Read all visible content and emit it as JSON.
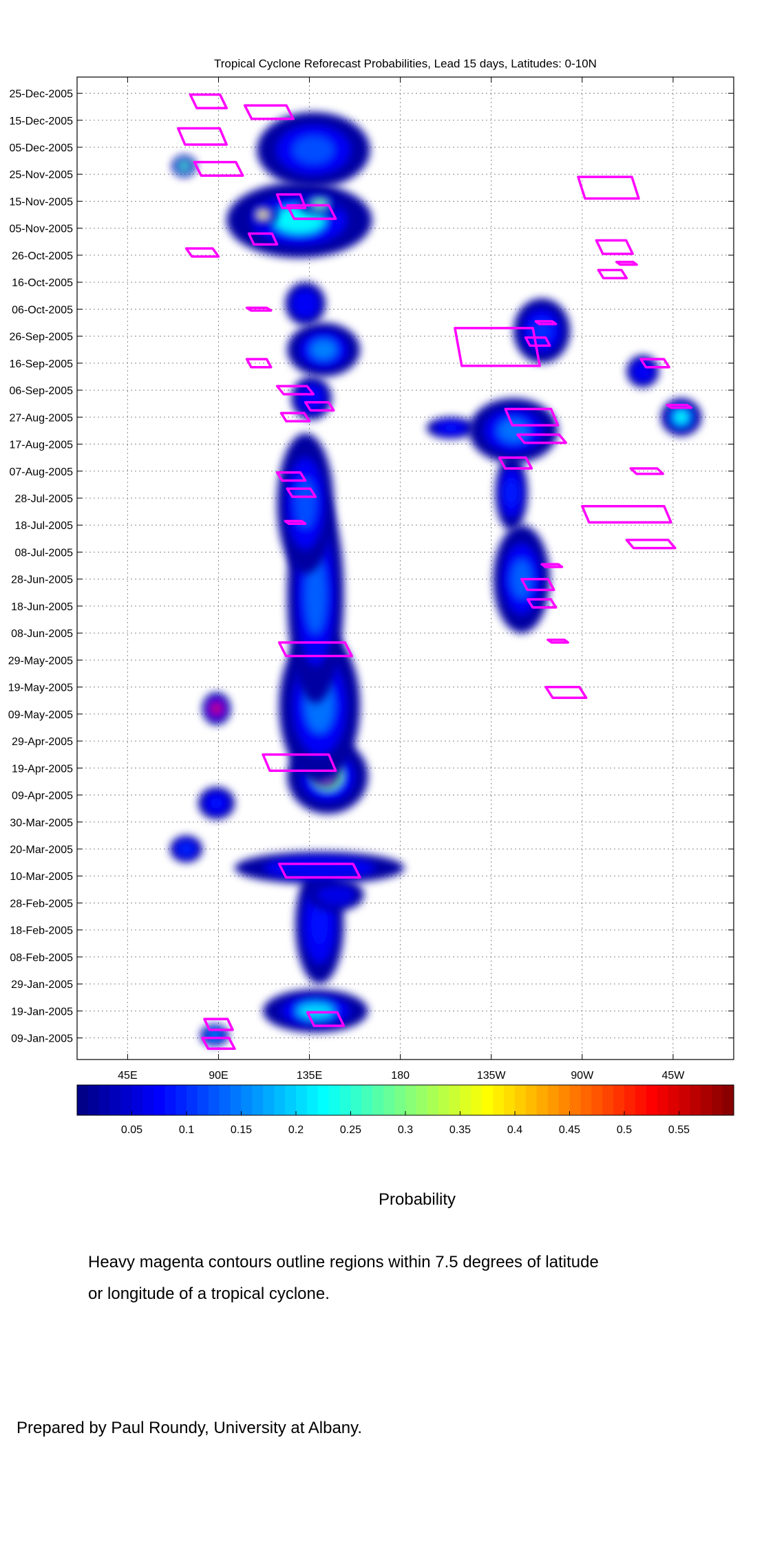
{
  "chart_data": {
    "type": "heatmap",
    "title": "Tropical Cyclone Reforecast Probabilities, Lead 15 days, Latitudes: 0-10N",
    "xlabel": "",
    "ylabel": "",
    "x_ticks": [
      {
        "lon": 45,
        "label": "45E"
      },
      {
        "lon": 90,
        "label": "90E"
      },
      {
        "lon": 135,
        "label": "135E"
      },
      {
        "lon": 180,
        "label": "180"
      },
      {
        "lon": 225,
        "label": "135W"
      },
      {
        "lon": 270,
        "label": "90W"
      },
      {
        "lon": 315,
        "label": "45W"
      }
    ],
    "xlim_lon": [
      20,
      345
    ],
    "y_ticks": [
      "25-Dec-2005",
      "15-Dec-2005",
      "05-Dec-2005",
      "25-Nov-2005",
      "15-Nov-2005",
      "05-Nov-2005",
      "26-Oct-2005",
      "16-Oct-2005",
      "06-Oct-2005",
      "26-Sep-2005",
      "16-Sep-2005",
      "06-Sep-2005",
      "27-Aug-2005",
      "17-Aug-2005",
      "07-Aug-2005",
      "28-Jul-2005",
      "18-Jul-2005",
      "08-Jul-2005",
      "28-Jun-2005",
      "18-Jun-2005",
      "08-Jun-2005",
      "29-May-2005",
      "19-May-2005",
      "09-May-2005",
      "29-Apr-2005",
      "19-Apr-2005",
      "09-Apr-2005",
      "30-Mar-2005",
      "20-Mar-2005",
      "10-Mar-2005",
      "28-Feb-2005",
      "18-Feb-2005",
      "08-Feb-2005",
      "29-Jan-2005",
      "19-Jan-2005",
      "09-Jan-2005"
    ],
    "ylim_dates": [
      "2005-01-01",
      "2005-12-31"
    ],
    "grid": true,
    "colorbar": {
      "label": "Probability",
      "min": 0,
      "max": 0.6,
      "ticks": [
        "0.05",
        "0.1",
        "0.15",
        "0.2",
        "0.25",
        "0.3",
        "0.35",
        "0.4",
        "0.45",
        "0.5",
        "0.55"
      ],
      "colormap": "jet"
    },
    "regions": [
      {
        "lon": 138,
        "date": "2005-01-19",
        "rlon": 26,
        "rdays": 8,
        "peak": 0.2
      },
      {
        "lon": 88,
        "date": "2005-01-10",
        "rlon": 7,
        "rdays": 4,
        "peak": 0.16
      },
      {
        "lon": 140,
        "date": "2005-02-20",
        "rlon": 12,
        "rdays": 22,
        "peak": 0.08
      },
      {
        "lon": 148,
        "date": "2005-03-03",
        "rlon": 14,
        "rdays": 6,
        "peak": 0.06
      },
      {
        "lon": 140,
        "date": "2005-03-13",
        "rlon": 42,
        "rdays": 6,
        "peak": 0.07
      },
      {
        "lon": 74,
        "date": "2005-03-20",
        "rlon": 8,
        "rdays": 5,
        "peak": 0.1
      },
      {
        "lon": 89,
        "date": "2005-04-06",
        "rlon": 9,
        "rdays": 6,
        "peak": 0.08
      },
      {
        "lon": 144,
        "date": "2005-04-16",
        "rlon": 20,
        "rdays": 14,
        "peak": 0.3
      },
      {
        "lon": 143,
        "date": "2005-04-16",
        "rlon": 6,
        "rdays": 4,
        "peak": 0.44
      },
      {
        "lon": 140,
        "date": "2005-05-12",
        "rlon": 20,
        "rdays": 28,
        "peak": 0.14
      },
      {
        "lon": 89,
        "date": "2005-05-11",
        "rlon": 7,
        "rdays": 6,
        "peak": 0.55
      },
      {
        "lon": 138,
        "date": "2005-06-22",
        "rlon": 14,
        "rdays": 40,
        "peak": 0.13
      },
      {
        "lon": 133,
        "date": "2005-07-26",
        "rlon": 14,
        "rdays": 26,
        "peak": 0.12
      },
      {
        "lon": 136,
        "date": "2005-09-03",
        "rlon": 10,
        "rdays": 8,
        "peak": 0.07
      },
      {
        "lon": 142,
        "date": "2005-09-21",
        "rlon": 18,
        "rdays": 10,
        "peak": 0.15
      },
      {
        "lon": 133,
        "date": "2005-10-08",
        "rlon": 10,
        "rdays": 8,
        "peak": 0.07
      },
      {
        "lon": 130,
        "date": "2005-11-08",
        "rlon": 36,
        "rdays": 14,
        "peak": 0.22
      },
      {
        "lon": 112,
        "date": "2005-11-10",
        "rlon": 7,
        "rdays": 4,
        "peak": 0.38
      },
      {
        "lon": 140,
        "date": "2005-11-14",
        "rlon": 10,
        "rdays": 4,
        "peak": 0.3
      },
      {
        "lon": 137,
        "date": "2005-12-04",
        "rlon": 28,
        "rdays": 14,
        "peak": 0.12
      },
      {
        "lon": 73,
        "date": "2005-11-28",
        "rlon": 6,
        "rdays": 4,
        "peak": 0.28
      },
      {
        "lon": 240,
        "date": "2005-06-28",
        "rlon": 14,
        "rdays": 20,
        "peak": 0.13
      },
      {
        "lon": 235,
        "date": "2005-07-30",
        "rlon": 8,
        "rdays": 14,
        "peak": 0.09
      },
      {
        "lon": 236,
        "date": "2005-08-22",
        "rlon": 22,
        "rdays": 12,
        "peak": 0.14
      },
      {
        "lon": 205,
        "date": "2005-08-23",
        "rlon": 12,
        "rdays": 4,
        "peak": 0.08
      },
      {
        "lon": 250,
        "date": "2005-09-28",
        "rlon": 14,
        "rdays": 12,
        "peak": 0.1
      },
      {
        "lon": 319,
        "date": "2005-08-27",
        "rlon": 10,
        "rdays": 7,
        "peak": 0.22
      },
      {
        "lon": 300,
        "date": "2005-09-13",
        "rlon": 8,
        "rdays": 6,
        "peak": 0.07
      }
    ],
    "tc_contours": [
      {
        "lon": 85,
        "date": "2005-12-22",
        "w": 18,
        "h": 5
      },
      {
        "lon": 115,
        "date": "2005-12-18",
        "w": 24,
        "h": 5
      },
      {
        "lon": 82,
        "date": "2005-12-09",
        "w": 24,
        "h": 6
      },
      {
        "lon": 90,
        "date": "2005-11-27",
        "w": 24,
        "h": 5
      },
      {
        "lon": 126,
        "date": "2005-11-15",
        "w": 14,
        "h": 5
      },
      {
        "lon": 136,
        "date": "2005-11-11",
        "w": 24,
        "h": 5
      },
      {
        "lon": 112,
        "date": "2005-11-01",
        "w": 14,
        "h": 4
      },
      {
        "lon": 82,
        "date": "2005-10-27",
        "w": 16,
        "h": 3
      },
      {
        "lon": 110,
        "date": "2005-10-06",
        "w": 12,
        "h": 1
      },
      {
        "lon": 110,
        "date": "2005-09-16",
        "w": 12,
        "h": 3
      },
      {
        "lon": 128,
        "date": "2005-09-06",
        "w": 18,
        "h": 3
      },
      {
        "lon": 140,
        "date": "2005-08-31",
        "w": 14,
        "h": 3
      },
      {
        "lon": 128,
        "date": "2005-08-27",
        "w": 14,
        "h": 3
      },
      {
        "lon": 126,
        "date": "2005-08-05",
        "w": 14,
        "h": 3
      },
      {
        "lon": 131,
        "date": "2005-07-30",
        "w": 14,
        "h": 3
      },
      {
        "lon": 128,
        "date": "2005-07-19",
        "w": 10,
        "h": 1
      },
      {
        "lon": 138,
        "date": "2005-06-02",
        "w": 36,
        "h": 5
      },
      {
        "lon": 130,
        "date": "2005-04-21",
        "w": 36,
        "h": 6
      },
      {
        "lon": 140,
        "date": "2005-03-12",
        "w": 40,
        "h": 5
      },
      {
        "lon": 143,
        "date": "2005-01-16",
        "w": 18,
        "h": 5
      },
      {
        "lon": 90,
        "date": "2005-01-14",
        "w": 14,
        "h": 4
      },
      {
        "lon": 90,
        "date": "2005-01-07",
        "w": 16,
        "h": 4
      },
      {
        "lon": 228,
        "date": "2005-09-22",
        "w": 42,
        "h": 14
      },
      {
        "lon": 252,
        "date": "2005-10-01",
        "w": 10,
        "h": 1
      },
      {
        "lon": 248,
        "date": "2005-09-24",
        "w": 12,
        "h": 3
      },
      {
        "lon": 245,
        "date": "2005-08-27",
        "w": 26,
        "h": 6
      },
      {
        "lon": 250,
        "date": "2005-08-19",
        "w": 24,
        "h": 3
      },
      {
        "lon": 237,
        "date": "2005-08-10",
        "w": 16,
        "h": 4
      },
      {
        "lon": 255,
        "date": "2005-07-03",
        "w": 10,
        "h": 1
      },
      {
        "lon": 248,
        "date": "2005-06-26",
        "w": 16,
        "h": 4
      },
      {
        "lon": 250,
        "date": "2005-06-19",
        "w": 14,
        "h": 3
      },
      {
        "lon": 258,
        "date": "2005-06-05",
        "w": 10,
        "h": 1
      },
      {
        "lon": 262,
        "date": "2005-05-17",
        "w": 20,
        "h": 4
      },
      {
        "lon": 292,
        "date": "2005-07-22",
        "w": 44,
        "h": 6
      },
      {
        "lon": 304,
        "date": "2005-07-11",
        "w": 24,
        "h": 3
      },
      {
        "lon": 302,
        "date": "2005-08-07",
        "w": 16,
        "h": 2
      },
      {
        "lon": 318,
        "date": "2005-08-31",
        "w": 12,
        "h": 1
      },
      {
        "lon": 306,
        "date": "2005-09-16",
        "w": 14,
        "h": 3
      },
      {
        "lon": 283,
        "date": "2005-11-20",
        "w": 30,
        "h": 8
      },
      {
        "lon": 286,
        "date": "2005-10-29",
        "w": 18,
        "h": 5
      },
      {
        "lon": 292,
        "date": "2005-10-23",
        "w": 10,
        "h": 1
      },
      {
        "lon": 285,
        "date": "2005-10-19",
        "w": 14,
        "h": 3
      }
    ]
  },
  "caption_lines": [
    "Heavy magenta contours outline regions within 7.5 degrees of latitude",
    "or longitude of a tropical cyclone."
  ],
  "credit": "Prepared by Paul Roundy, University at Albany."
}
